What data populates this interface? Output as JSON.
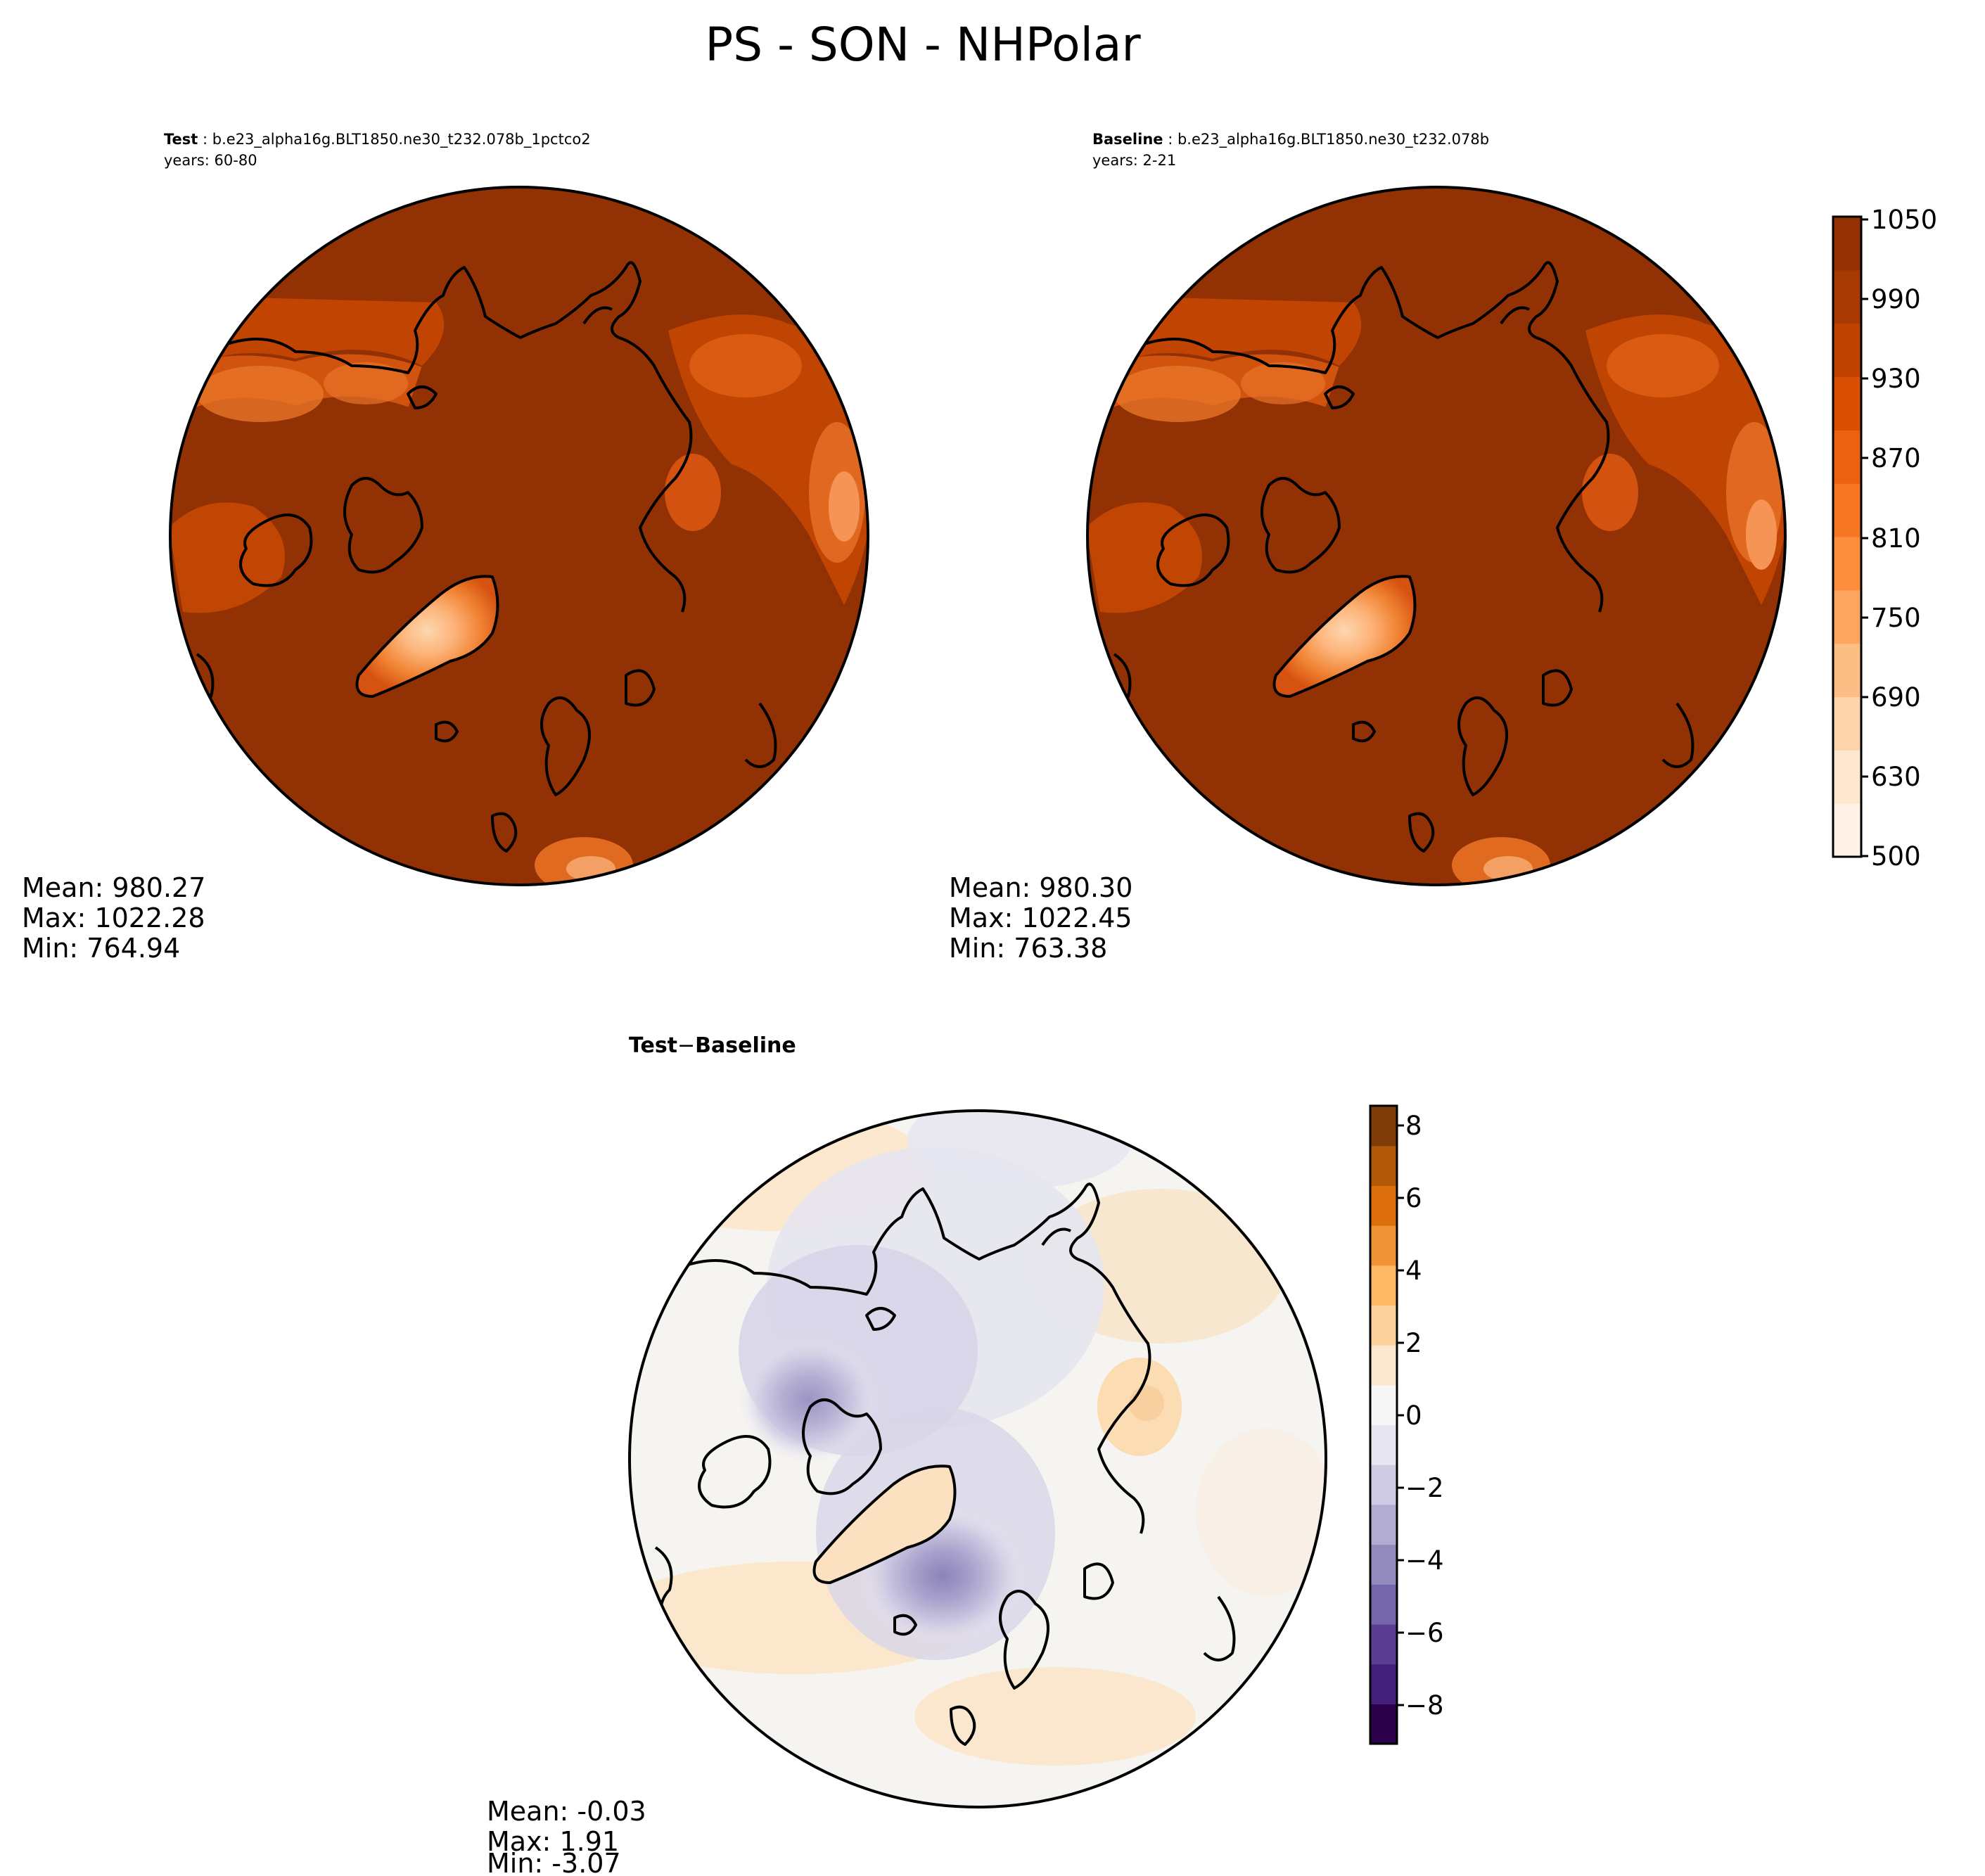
{
  "figure": {
    "title": "PS - SON - NHPolar"
  },
  "panels": {
    "test": {
      "label": "Test",
      "case": "b.e23_alpha16g.BLT1850.ne30_t232.078b_1pctco2",
      "years": "years: 60-80",
      "stats": {
        "mean": "Mean: 980.27",
        "max": "Max: 1022.28",
        "min": "Min: 764.94"
      }
    },
    "baseline": {
      "label": "Baseline",
      "case": "b.e23_alpha16g.BLT1850.ne30_t232.078b",
      "years": "years: 2-21",
      "stats": {
        "mean": "Mean: 980.30",
        "max": "Max: 1022.45",
        "min": "Min: 763.38"
      }
    },
    "diff": {
      "label_a": "Test",
      "label_minus": "−",
      "label_b": "Baseline",
      "stats": {
        "mean": "Mean: -0.03",
        "max": "Max:  1.91",
        "min": "Min: -3.07"
      }
    }
  },
  "colorbars": {
    "main": {
      "colormap": "Oranges",
      "ticks": [
        "1050",
        "990",
        "930",
        "870",
        "810",
        "750",
        "690",
        "630",
        "500"
      ],
      "colors": [
        "#fff3e8",
        "#fee6cf",
        "#fdd4ac",
        "#fdbe85",
        "#fda660",
        "#fd8e3d",
        "#f77622",
        "#eb610f",
        "#d94f04",
        "#c04302",
        "#a73903",
        "#933104"
      ]
    },
    "diff": {
      "colormap": "PuOr_r",
      "ticks": [
        "8",
        "6",
        "4",
        "2",
        "0",
        "−2",
        "−4",
        "−6",
        "−8"
      ],
      "colors": [
        "#2d004b",
        "#43207a",
        "#5a3e93",
        "#7466a8",
        "#9289bd",
        "#b2abd2",
        "#cfcbe4",
        "#e6e5f0",
        "#f7f7f7",
        "#fbe7cd",
        "#fdd29c",
        "#fdb863",
        "#f09336",
        "#dc6f0c",
        "#b35806",
        "#7f3b08"
      ]
    }
  }
}
